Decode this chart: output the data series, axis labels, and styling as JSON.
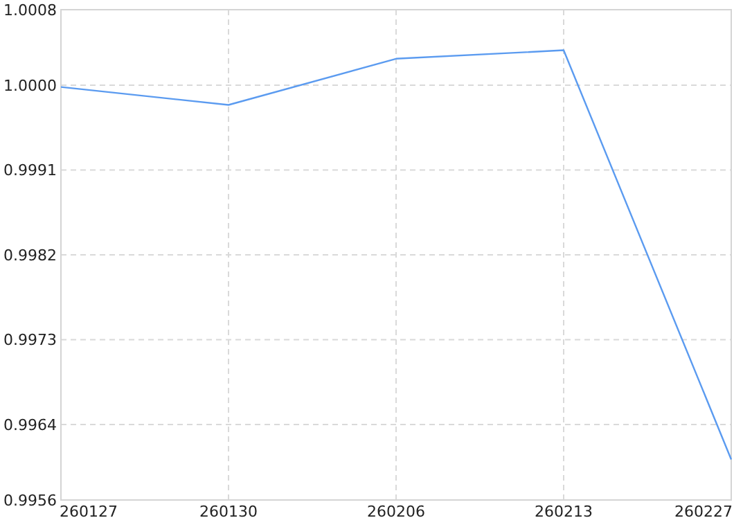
{
  "chart_data": {
    "type": "line",
    "categories": [
      "260127",
      "260130",
      "260206",
      "260213",
      "260227"
    ],
    "series": [
      {
        "color": "#5b9bf0",
        "values": [
          0.99998,
          0.99979,
          1.00028,
          1.00037,
          0.99603
        ]
      }
    ],
    "ylim": [
      0.9956,
      1.0008
    ],
    "yticks": [
      0.9956,
      0.9964,
      0.9973,
      0.9982,
      0.9991,
      {
        "value": 1.0,
        "label": "1.0000"
      },
      1.0008
    ],
    "grid": true,
    "marker": "none",
    "line_style": "solid"
  }
}
